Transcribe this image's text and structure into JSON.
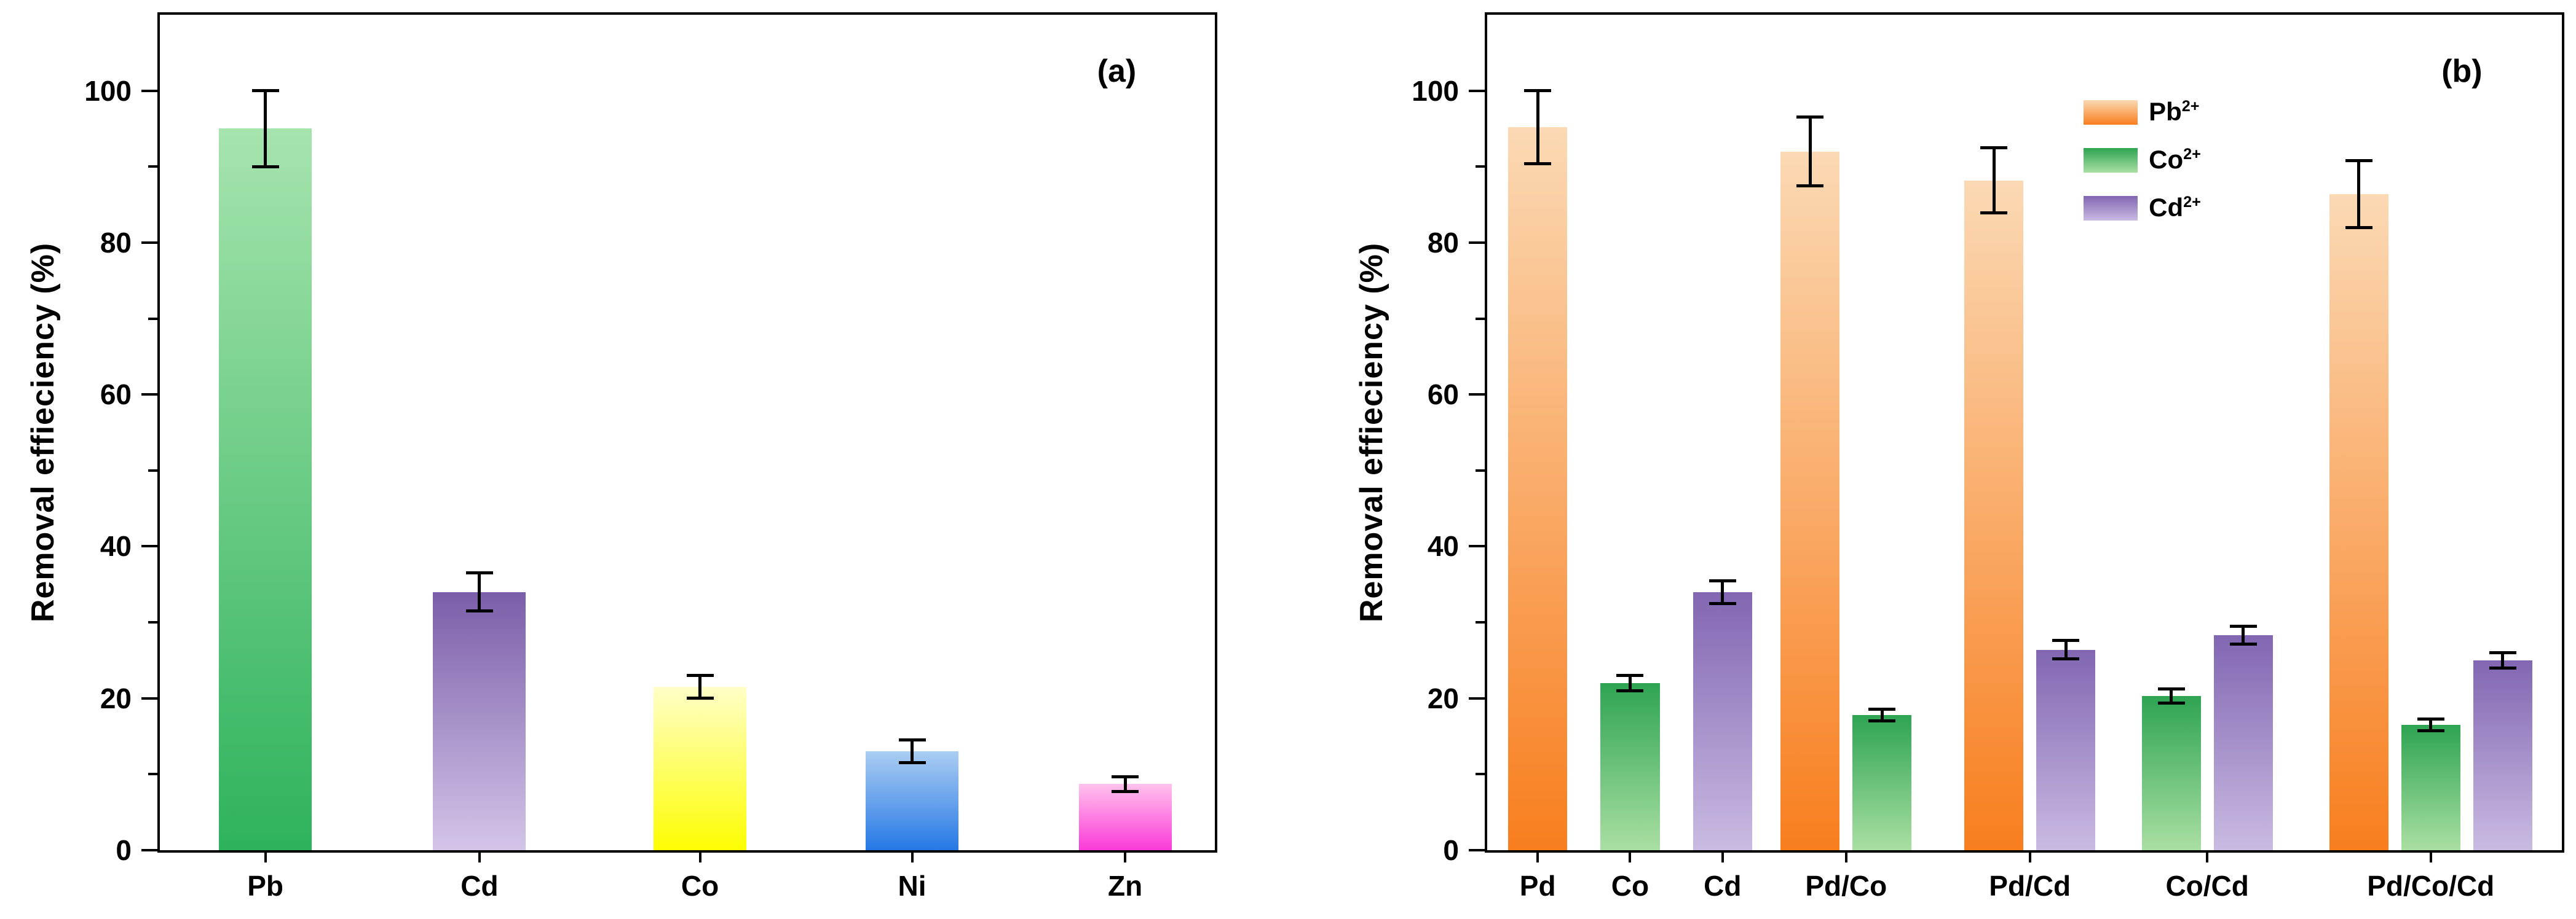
{
  "figure": {
    "background": "#ffffff",
    "error_bar_color": "#000000",
    "axis_color": "#000000"
  },
  "chart_data": [
    {
      "type": "bar",
      "panel_label": "(a)",
      "title": "",
      "xlabel": "",
      "ylabel": "Removal effieciency (%)",
      "ylim": [
        0,
        110
      ],
      "yticks": [
        0,
        20,
        40,
        60,
        80,
        100
      ],
      "yminor": [
        10,
        30,
        50,
        70,
        90
      ],
      "grid": false,
      "categories": [
        "Pb",
        "Cd",
        "Co",
        "Ni",
        "Zn"
      ],
      "values": [
        95,
        34,
        21.5,
        13,
        8.7
      ],
      "errors": [
        5,
        2.5,
        1.5,
        1.5,
        1
      ],
      "bar_colors": [
        {
          "top": "#a6e4ad",
          "bottom": "#2eb25d"
        },
        {
          "top": "#7b5ea9",
          "bottom": "#d3c5e8"
        },
        {
          "top": "#ffffc8",
          "bottom": "#fdfd02"
        },
        {
          "top": "#aacdf2",
          "bottom": "#2678e6"
        },
        {
          "top": "#ffc2ec",
          "bottom": "#fb3ad8"
        }
      ],
      "centers": [
        0.1,
        0.303,
        0.512,
        0.713,
        0.915
      ],
      "bar_width_frac": 0.088
    },
    {
      "type": "grouped-bar",
      "panel_label": "(b)",
      "title": "",
      "xlabel": "",
      "ylabel": "Removal effieciency (%)",
      "ylim": [
        0,
        110
      ],
      "yticks": [
        0,
        20,
        40,
        60,
        80,
        100
      ],
      "yminor": [
        10,
        30,
        50,
        70,
        90
      ],
      "grid": false,
      "series": [
        {
          "name": "Pb",
          "charge": "2+",
          "color_top": "#fbd9b4",
          "color_bottom": "#f87e1e"
        },
        {
          "name": "Co",
          "charge": "2+",
          "color_top": "#2ea452",
          "color_bottom": "#a9dfa2"
        },
        {
          "name": "Cd",
          "charge": "2+",
          "color_top": "#8266b2",
          "color_bottom": "#c9bbe2"
        }
      ],
      "groups": [
        {
          "label": "Pd",
          "center": 0.047,
          "bars": [
            {
              "series": 0,
              "value": 95.2,
              "err": 4.8
            }
          ]
        },
        {
          "label": "Co",
          "center": 0.133,
          "bars": [
            {
              "series": 1,
              "value": 22.0,
              "err": 1.0
            }
          ]
        },
        {
          "label": "Cd",
          "center": 0.219,
          "bars": [
            {
              "series": 2,
              "value": 34.0,
              "err": 1.5
            }
          ]
        },
        {
          "label": "Pd/Co",
          "center": 0.334,
          "bars": [
            {
              "series": 0,
              "value": 92.0,
              "err": 4.5
            },
            {
              "series": 1,
              "value": 17.8,
              "err": 0.8
            }
          ]
        },
        {
          "label": "Pd/Cd",
          "center": 0.505,
          "bars": [
            {
              "series": 0,
              "value": 88.2,
              "err": 4.3
            },
            {
              "series": 2,
              "value": 26.4,
              "err": 1.2
            }
          ]
        },
        {
          "label": "Co/Cd",
          "center": 0.67,
          "bars": [
            {
              "series": 1,
              "value": 20.3,
              "err": 0.9
            },
            {
              "series": 2,
              "value": 28.3,
              "err": 1.2
            }
          ]
        },
        {
          "label": "Pd/Co/Cd",
          "center": 0.878,
          "bars": [
            {
              "series": 0,
              "value": 86.4,
              "err": 4.4
            },
            {
              "series": 1,
              "value": 16.5,
              "err": 0.8
            },
            {
              "series": 2,
              "value": 25.0,
              "err": 1.0
            }
          ]
        }
      ],
      "bar_width_frac": 0.055,
      "bar_gap_frac": 0.012,
      "legend": {
        "position": "upper-right-inside",
        "x_frac": 0.555,
        "y": 124
      }
    }
  ]
}
